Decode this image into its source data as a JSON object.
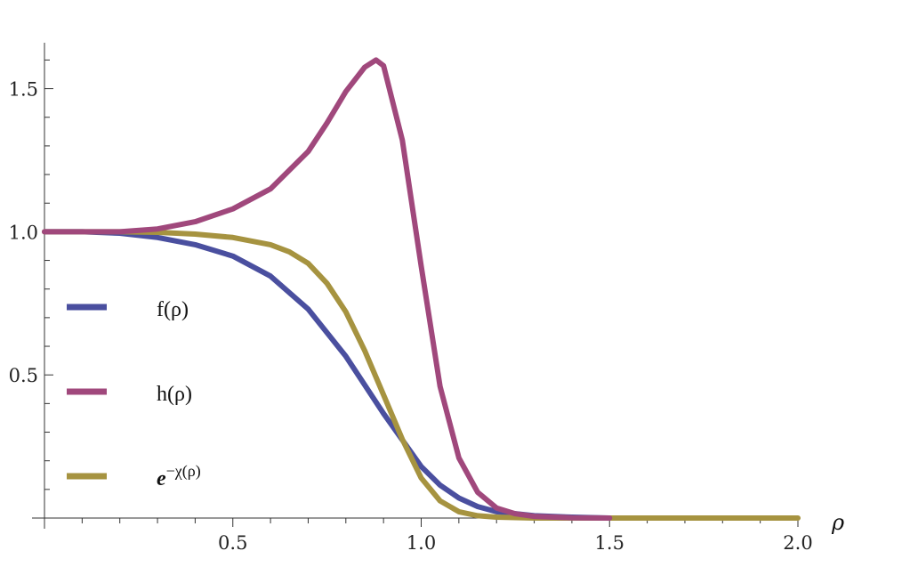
{
  "chart_data": {
    "type": "line",
    "xlabel": "ρ",
    "ylabel": "",
    "xlim": [
      0,
      2.0
    ],
    "ylim": [
      0,
      1.62
    ],
    "x_ticks": [
      0.5,
      1.0,
      1.5,
      2.0
    ],
    "x_tick_labels": [
      "0.5",
      "1.0",
      "1.5",
      "2.0"
    ],
    "y_ticks": [
      0.5,
      1.0,
      1.5
    ],
    "y_tick_labels": [
      "0.5",
      "1.0",
      "1.5"
    ],
    "grid": false,
    "legend_placement": "left",
    "series": [
      {
        "name": "f(ρ)",
        "color": "#4a4f9f",
        "x": [
          0,
          0.1,
          0.2,
          0.3,
          0.4,
          0.5,
          0.6,
          0.7,
          0.8,
          0.9,
          1.0,
          1.05,
          1.1,
          1.15,
          1.2,
          1.3,
          1.4,
          1.5
        ],
        "y": [
          1.0,
          1.0,
          0.995,
          0.98,
          0.955,
          0.915,
          0.845,
          0.73,
          0.565,
          0.365,
          0.18,
          0.115,
          0.07,
          0.04,
          0.022,
          0.008,
          0.003,
          0.0
        ]
      },
      {
        "name": "h(ρ)",
        "color": "#a0487c",
        "x": [
          0,
          0.1,
          0.2,
          0.3,
          0.4,
          0.5,
          0.6,
          0.7,
          0.75,
          0.8,
          0.85,
          0.88,
          0.9,
          0.95,
          1.0,
          1.05,
          1.1,
          1.15,
          1.2,
          1.25,
          1.3,
          1.4,
          1.5
        ],
        "y": [
          1.0,
          1.0,
          1.0,
          1.01,
          1.035,
          1.08,
          1.15,
          1.28,
          1.38,
          1.49,
          1.575,
          1.6,
          1.58,
          1.32,
          0.88,
          0.46,
          0.21,
          0.09,
          0.035,
          0.015,
          0.006,
          0.001,
          0.0
        ]
      },
      {
        "name": "e^{-χ(ρ)}",
        "color": "#a69340",
        "x": [
          0,
          0.2,
          0.3,
          0.4,
          0.5,
          0.6,
          0.65,
          0.7,
          0.75,
          0.8,
          0.85,
          0.9,
          0.95,
          1.0,
          1.05,
          1.1,
          1.15,
          1.2,
          1.3,
          1.5,
          2.0
        ],
        "y": [
          1.0,
          1.0,
          0.998,
          0.992,
          0.98,
          0.955,
          0.93,
          0.89,
          0.82,
          0.72,
          0.585,
          0.43,
          0.275,
          0.14,
          0.06,
          0.022,
          0.008,
          0.003,
          0.0,
          0.0,
          0.0
        ]
      }
    ]
  }
}
